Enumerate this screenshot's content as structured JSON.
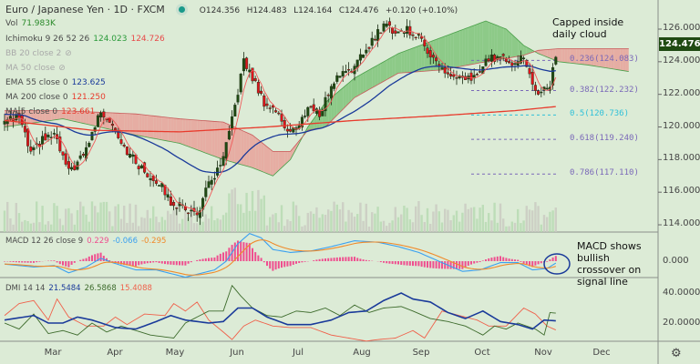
{
  "header": {
    "symbol": "Euro / Japanese Yen · 1D · FXCM",
    "o": "O124.356",
    "h": "H124.483",
    "l": "L124.164",
    "c": "C124.476",
    "change": "+0.120 (+0.10%)"
  },
  "legend": {
    "vol": {
      "label": "Vol",
      "value": "71.983K"
    },
    "ichimoku": {
      "label": "Ichimoku 9 26 52 26",
      "v1": "124.023",
      "v2": "124.726"
    },
    "bb": {
      "label": "BB 20 close 2"
    },
    "ma50": {
      "label": "MA 50 close"
    },
    "ema55": {
      "label": "EMA 55 close 0",
      "value": "123.625"
    },
    "ma200": {
      "label": "MA 200 close 0",
      "value": "121.250"
    },
    "ma5": {
      "label": "MA 5 close 0",
      "value": "123.661"
    },
    "macd": {
      "label": "MACD 12 26 close 9",
      "hist": "0.229",
      "macd": "-0.066",
      "signal": "-0.295"
    },
    "dmi": {
      "label": "DMI 14 14",
      "adx": "21.5484",
      "pdi": "26.5868",
      "mdi": "15.4088"
    }
  },
  "annotations": {
    "cloud": "Capped inside daily cloud",
    "macd": "MACD shows bullish crossover on signal line"
  },
  "price_axis": [
    "126.000",
    "124.000",
    "122.000",
    "120.000",
    "118.000",
    "116.000",
    "114.000"
  ],
  "current_price": "124.476",
  "macd_axis": [
    "0.000"
  ],
  "dmi_axis": [
    "40.0000",
    "20.0000"
  ],
  "months": [
    "Mar",
    "Apr",
    "May",
    "Jun",
    "Jul",
    "Aug",
    "Sep",
    "Oct",
    "Nov",
    "Dec"
  ],
  "fib": [
    {
      "label": "0.236(124.083)",
      "price": 124.083
    },
    {
      "label": "0.382(122.232)",
      "price": 122.232
    },
    {
      "label": "0.5(120.736)",
      "price": 120.736
    },
    {
      "label": "0.618(119.240)",
      "price": 119.24
    },
    {
      "label": "0.786(117.110)",
      "price": 117.11
    }
  ],
  "colors": {
    "bg": "#dcebd6",
    "bull": "#1f4a12",
    "bear": "#e0151c",
    "ema55": "#1a3a9a",
    "ma200": "#e83a2c",
    "ma5": "#f05a5a",
    "cloud_bull": "#7fc47a",
    "cloud_bear": "#e8a29a",
    "macd": "#3aa0f0",
    "signal": "#f08a2a",
    "hist": "#ef4f8f",
    "adx": "#1a3a9a",
    "pdi": "#3d6b2c",
    "mdi": "#f0604a",
    "fib": "#7a68b8",
    "fib_half": "#2ec0d8"
  },
  "chart_data": {
    "type": "line",
    "title": "Euro / Japanese Yen · 1D · FXCM",
    "x_unit": "trading day index (Mar≈17, Apr≈38, May≈58, Jun≈80, Jul≈101, Aug≈122, Sep≈143, Oct≈164, Nov≈185)",
    "ylim": [
      113.5,
      127.5
    ],
    "close": [
      [
        0,
        120.3
      ],
      [
        5,
        120.6
      ],
      [
        9,
        118.3
      ],
      [
        13,
        119.2
      ],
      [
        17,
        119.5
      ],
      [
        22,
        117.2
      ],
      [
        27,
        118.2
      ],
      [
        33,
        121
      ],
      [
        37,
        120.2
      ],
      [
        42,
        118.5
      ],
      [
        48,
        117.2
      ],
      [
        53,
        116.6
      ],
      [
        57,
        115.4
      ],
      [
        62,
        115
      ],
      [
        66,
        114.6
      ],
      [
        70,
        116.5
      ],
      [
        74,
        117.5
      ],
      [
        77,
        119.5
      ],
      [
        80,
        122.2
      ],
      [
        82,
        124
      ],
      [
        85,
        123
      ],
      [
        89,
        121.5
      ],
      [
        93,
        121
      ],
      [
        97,
        119.8
      ],
      [
        101,
        120
      ],
      [
        104,
        121.3
      ],
      [
        108,
        120.8
      ],
      [
        112,
        122.5
      ],
      [
        116,
        123.5
      ],
      [
        120,
        123.6
      ],
      [
        124,
        124.8
      ],
      [
        128,
        125.8
      ],
      [
        131,
        126.3
      ],
      [
        134,
        125.8
      ],
      [
        138,
        126
      ],
      [
        142,
        125.5
      ],
      [
        146,
        124.5
      ],
      [
        150,
        123.5
      ],
      [
        154,
        123
      ],
      [
        158,
        122.8
      ],
      [
        162,
        123.2
      ],
      [
        166,
        124.2
      ],
      [
        170,
        124.3
      ],
      [
        174,
        124
      ],
      [
        178,
        124.3
      ],
      [
        181,
        122.5
      ],
      [
        184,
        122
      ],
      [
        187,
        122.6
      ],
      [
        189,
        124.476
      ]
    ],
    "span_a": [
      [
        0,
        120
      ],
      [
        20,
        120.5
      ],
      [
        45,
        119.5
      ],
      [
        60,
        119
      ],
      [
        75,
        118
      ],
      [
        85,
        117.5
      ],
      [
        92,
        117
      ],
      [
        98,
        118
      ],
      [
        104,
        120
      ],
      [
        110,
        121.5
      ],
      [
        120,
        123
      ],
      [
        135,
        124.5
      ],
      [
        150,
        125.5
      ],
      [
        165,
        126.5
      ],
      [
        172,
        126
      ],
      [
        178,
        125
      ],
      [
        183,
        124.5
      ],
      [
        190,
        124
      ],
      [
        200,
        123.8
      ],
      [
        214,
        123.4
      ]
    ],
    "span_b": [
      [
        0,
        121
      ],
      [
        20,
        121
      ],
      [
        45,
        120.8
      ],
      [
        60,
        120.5
      ],
      [
        75,
        120.3
      ],
      [
        85,
        119.5
      ],
      [
        92,
        118.5
      ],
      [
        98,
        118.5
      ],
      [
        104,
        119.8
      ],
      [
        110,
        120
      ],
      [
        120,
        121.8
      ],
      [
        135,
        123.3
      ],
      [
        150,
        123.5
      ],
      [
        165,
        124
      ],
      [
        172,
        124.2
      ],
      [
        178,
        124.4
      ],
      [
        183,
        124.7
      ],
      [
        190,
        124.8
      ],
      [
        200,
        124.8
      ],
      [
        214,
        124.8
      ]
    ],
    "ma200": [
      [
        0,
        120.4
      ],
      [
        30,
        119.8
      ],
      [
        60,
        119.7
      ],
      [
        90,
        120
      ],
      [
        120,
        120.4
      ],
      [
        150,
        120.7
      ],
      [
        175,
        121
      ],
      [
        189,
        121.25
      ]
    ],
    "macd": [
      [
        0,
        -0.1
      ],
      [
        10,
        -0.2
      ],
      [
        17,
        -0.15
      ],
      [
        22,
        -0.4
      ],
      [
        28,
        -0.2
      ],
      [
        33,
        0.1
      ],
      [
        37,
        -0.05
      ],
      [
        45,
        -0.3
      ],
      [
        52,
        -0.3
      ],
      [
        58,
        -0.45
      ],
      [
        62,
        -0.55
      ],
      [
        66,
        -0.45
      ],
      [
        72,
        -0.3
      ],
      [
        76,
        0
      ],
      [
        80,
        0.6
      ],
      [
        84,
        0.95
      ],
      [
        88,
        0.8
      ],
      [
        92,
        0.4
      ],
      [
        98,
        0.3
      ],
      [
        105,
        0.35
      ],
      [
        112,
        0.5
      ],
      [
        120,
        0.7
      ],
      [
        128,
        0.65
      ],
      [
        135,
        0.5
      ],
      [
        142,
        0.3
      ],
      [
        150,
        -0.05
      ],
      [
        157,
        -0.35
      ],
      [
        163,
        -0.3
      ],
      [
        170,
        -0.05
      ],
      [
        176,
        -0.05
      ],
      [
        181,
        -0.3
      ],
      [
        186,
        -0.25
      ],
      [
        189,
        -0.066
      ]
    ],
    "adx": [
      [
        0,
        22
      ],
      [
        10,
        25
      ],
      [
        15,
        20
      ],
      [
        20,
        20
      ],
      [
        25,
        24
      ],
      [
        30,
        22
      ],
      [
        38,
        17
      ],
      [
        45,
        16
      ],
      [
        52,
        21
      ],
      [
        57,
        25
      ],
      [
        62,
        22
      ],
      [
        70,
        20
      ],
      [
        75,
        21
      ],
      [
        80,
        30
      ],
      [
        85,
        30
      ],
      [
        90,
        24
      ],
      [
        97,
        19
      ],
      [
        105,
        19
      ],
      [
        112,
        22
      ],
      [
        118,
        27
      ],
      [
        124,
        28
      ],
      [
        130,
        35
      ],
      [
        136,
        40
      ],
      [
        140,
        36
      ],
      [
        146,
        34
      ],
      [
        152,
        27
      ],
      [
        158,
        23
      ],
      [
        164,
        28
      ],
      [
        170,
        21
      ],
      [
        176,
        19
      ],
      [
        181,
        16
      ],
      [
        185,
        22
      ],
      [
        189,
        21.5
      ]
    ],
    "plus_di": [
      [
        0,
        20
      ],
      [
        5,
        16
      ],
      [
        10,
        26
      ],
      [
        15,
        13
      ],
      [
        20,
        15
      ],
      [
        25,
        12
      ],
      [
        30,
        20
      ],
      [
        35,
        14
      ],
      [
        40,
        18
      ],
      [
        50,
        12
      ],
      [
        58,
        10
      ],
      [
        62,
        20
      ],
      [
        70,
        28
      ],
      [
        75,
        28
      ],
      [
        78,
        45
      ],
      [
        81,
        38
      ],
      [
        85,
        30
      ],
      [
        90,
        25
      ],
      [
        95,
        24
      ],
      [
        100,
        28
      ],
      [
        105,
        27
      ],
      [
        110,
        30
      ],
      [
        115,
        25
      ],
      [
        120,
        32
      ],
      [
        125,
        27
      ],
      [
        130,
        30
      ],
      [
        136,
        31
      ],
      [
        140,
        28
      ],
      [
        146,
        23
      ],
      [
        152,
        21
      ],
      [
        158,
        18
      ],
      [
        164,
        12
      ],
      [
        168,
        18
      ],
      [
        172,
        16
      ],
      [
        176,
        20
      ],
      [
        182,
        16
      ],
      [
        185,
        12
      ],
      [
        187,
        27
      ],
      [
        189,
        26.6
      ]
    ],
    "minus_di": [
      [
        0,
        25
      ],
      [
        5,
        33
      ],
      [
        10,
        35
      ],
      [
        15,
        22
      ],
      [
        18,
        36
      ],
      [
        22,
        24
      ],
      [
        28,
        18
      ],
      [
        34,
        18
      ],
      [
        38,
        24
      ],
      [
        42,
        19
      ],
      [
        48,
        26
      ],
      [
        55,
        25
      ],
      [
        58,
        33
      ],
      [
        62,
        28
      ],
      [
        66,
        34
      ],
      [
        70,
        22
      ],
      [
        75,
        14
      ],
      [
        78,
        9
      ],
      [
        82,
        18
      ],
      [
        86,
        22
      ],
      [
        92,
        18
      ],
      [
        98,
        17
      ],
      [
        105,
        17
      ],
      [
        112,
        12
      ],
      [
        118,
        10
      ],
      [
        124,
        8
      ],
      [
        128,
        9
      ],
      [
        134,
        10
      ],
      [
        140,
        15
      ],
      [
        144,
        10
      ],
      [
        150,
        28
      ],
      [
        156,
        25
      ],
      [
        162,
        22
      ],
      [
        166,
        18
      ],
      [
        172,
        18
      ],
      [
        178,
        30
      ],
      [
        182,
        26
      ],
      [
        186,
        18
      ],
      [
        189,
        15.4
      ]
    ]
  }
}
